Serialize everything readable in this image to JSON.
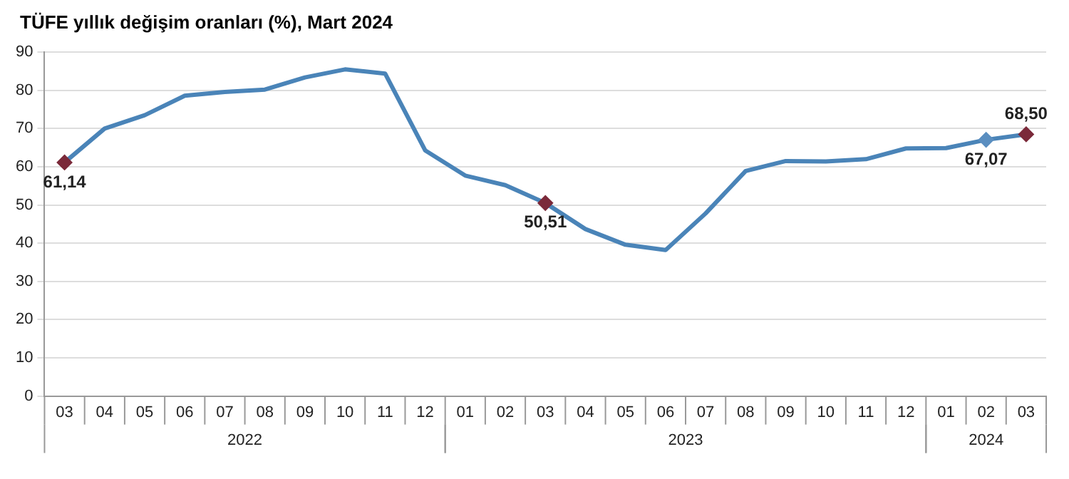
{
  "chart_data": {
    "type": "line",
    "title": "TÜFE yıllık değişim oranları (%), Mart 2024",
    "categories": [
      "03",
      "04",
      "05",
      "06",
      "07",
      "08",
      "09",
      "10",
      "11",
      "12",
      "01",
      "02",
      "03",
      "04",
      "05",
      "06",
      "07",
      "08",
      "09",
      "10",
      "11",
      "12",
      "01",
      "02",
      "03"
    ],
    "annotations": [
      "2022",
      "2023",
      "2024"
    ],
    "series": [
      {
        "color": "#4a84b8",
        "values": [
          61.14,
          70,
          73.5,
          78.6,
          79.6,
          80.2,
          83.4,
          85.5,
          84.4,
          64.3,
          57.7,
          55.2,
          50.51,
          43.7,
          39.6,
          38.2,
          47.8,
          58.9,
          61.5,
          61.4,
          62,
          64.8,
          64.9,
          67.07,
          68.5
        ]
      },
      {
        "type": "scatter",
        "marker": "diamond",
        "colors": [
          "#7b2a3a",
          null,
          null,
          null,
          null,
          null,
          null,
          null,
          null,
          null,
          null,
          null,
          "#7b2a3a",
          null,
          null,
          null,
          null,
          null,
          null,
          null,
          null,
          null,
          null,
          "#5a8ec0",
          "#7b2a3a"
        ],
        "values": [
          61.14,
          null,
          null,
          null,
          null,
          null,
          null,
          null,
          null,
          null,
          null,
          null,
          50.51,
          null,
          null,
          null,
          null,
          null,
          null,
          null,
          null,
          null,
          null,
          67.07,
          68.5
        ],
        "value_labels": [
          "61,14",
          null,
          null,
          null,
          null,
          null,
          null,
          null,
          null,
          null,
          null,
          null,
          "50,51",
          null,
          null,
          null,
          null,
          null,
          null,
          null,
          null,
          null,
          null,
          "67,07",
          "68,50"
        ]
      }
    ],
    "ylim": [
      0,
      90
    ],
    "yticks": [
      0,
      10,
      20,
      30,
      40,
      50,
      60,
      70,
      80,
      90
    ],
    "grid": "y",
    "legend": false
  }
}
